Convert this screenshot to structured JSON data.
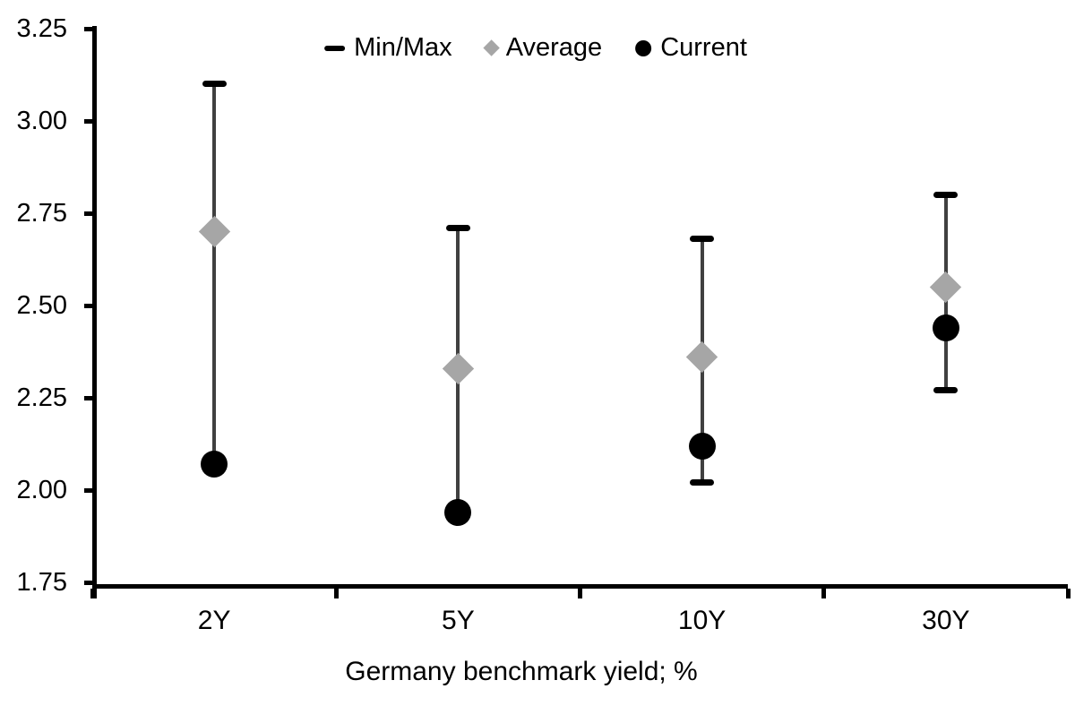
{
  "chart_data": {
    "type": "scatter",
    "title": "",
    "xlabel": "Germany benchmark yield; %",
    "ylabel": "",
    "categories": [
      "2Y",
      "5Y",
      "10Y",
      "30Y"
    ],
    "series": [
      {
        "name": "Min",
        "values": [
          2.07,
          1.94,
          2.02,
          2.27
        ]
      },
      {
        "name": "Max",
        "values": [
          3.1,
          2.71,
          2.68,
          2.8
        ]
      },
      {
        "name": "Average",
        "values": [
          2.7,
          2.33,
          2.36,
          2.55
        ]
      },
      {
        "name": "Current",
        "values": [
          2.07,
          1.94,
          2.12,
          2.44
        ]
      }
    ],
    "ylim": [
      1.75,
      3.25
    ],
    "ytick_labels": [
      "3.25",
      "3.00",
      "2.75",
      "2.50",
      "2.25",
      "2.00",
      "1.75"
    ],
    "grid": false,
    "legend": {
      "position": "top-center",
      "items": {
        "minmax": "Min/Max",
        "average": "Average",
        "current": "Current"
      }
    },
    "colors": {
      "current_black": "#000000",
      "average_gray": "#a6a6a6",
      "range_line": "#404040",
      "axis": "#000000"
    }
  }
}
